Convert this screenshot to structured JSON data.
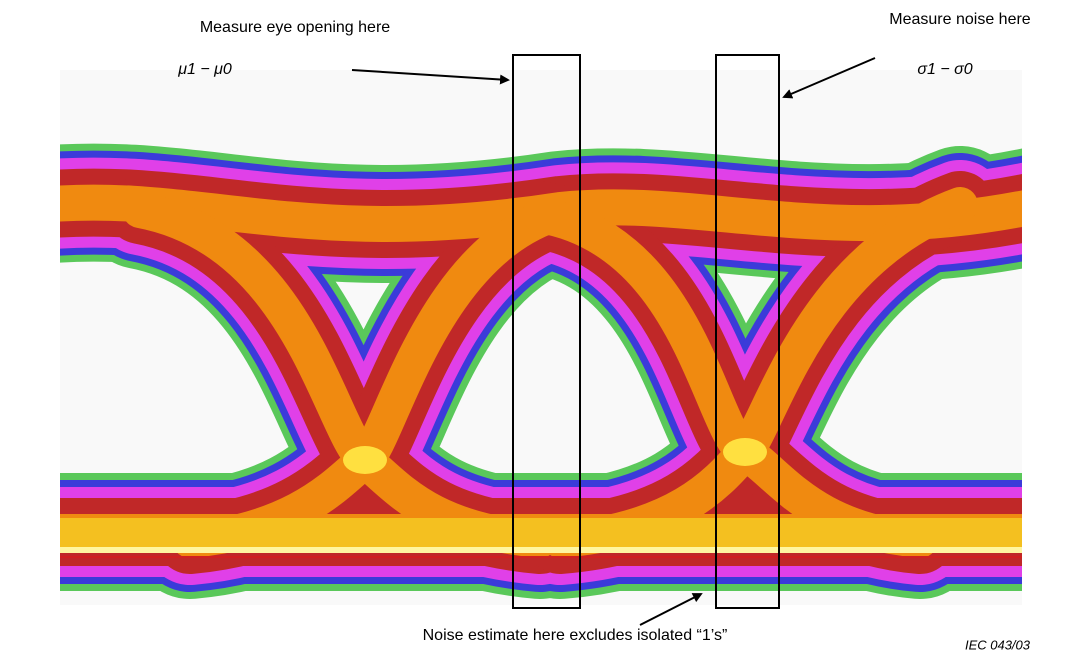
{
  "annotations": {
    "eye_opening": "Measure eye opening here",
    "mu_formula": "μ1 − μ0",
    "noise": "Measure noise here",
    "sigma_formula": "σ1 − σ0",
    "bottom_note": "Noise estimate here excludes isolated “1’s”",
    "figure_id": "IEC  043/03"
  }
}
